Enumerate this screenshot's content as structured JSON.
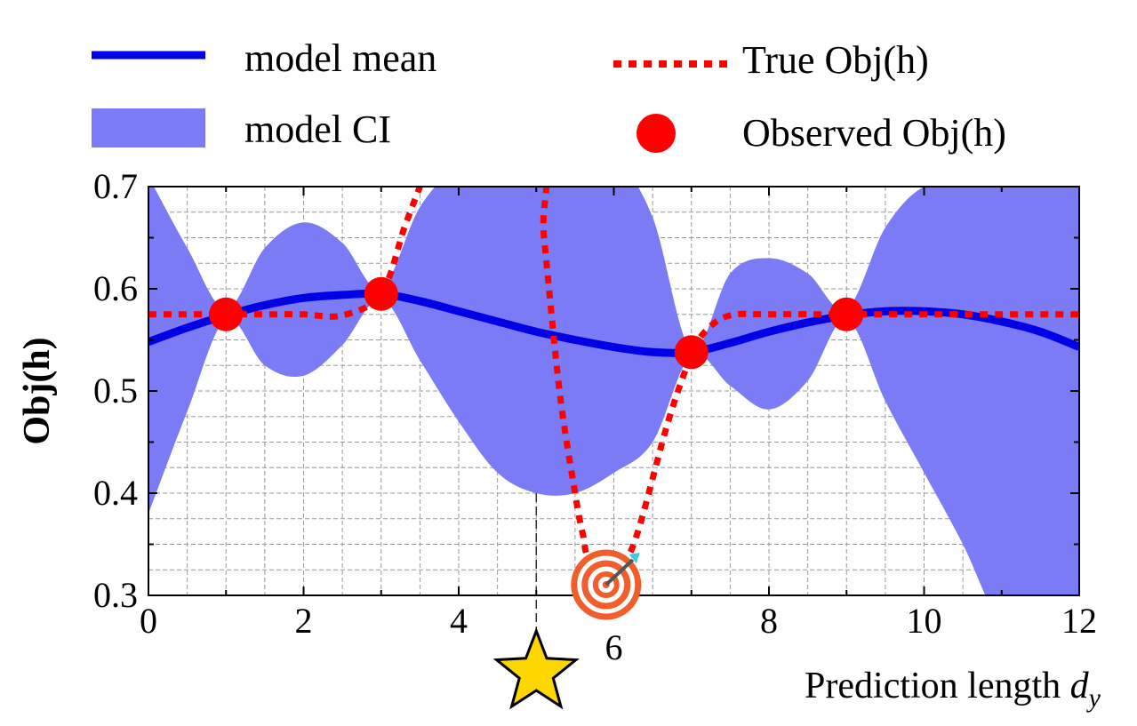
{
  "chart_data": {
    "type": "line",
    "legend_position": "top",
    "grid": true,
    "xlabel_text": "Prediction length ",
    "xlabel_var": "d",
    "xlabel_sub": "y",
    "ylabel": "Obj(h)",
    "xlim": [
      0,
      12
    ],
    "ylim": [
      0.3,
      0.7
    ],
    "x_ticks": [
      "0",
      "2",
      "4",
      "6",
      "8",
      "10",
      "12"
    ],
    "y_ticks": [
      "0.3",
      "0.4",
      "0.5",
      "0.6",
      "0.7"
    ],
    "legend": {
      "model_mean": "model mean",
      "model_ci": "model CI",
      "true_obj": "True Obj(h)",
      "observed": "Observed Obj(h)"
    },
    "colors": {
      "mean": "#0000e6",
      "ci": "#7b7bf5",
      "true": "#ff0000",
      "observed": "#ff0000",
      "star": "#ffd700"
    },
    "icons": [
      "star-icon",
      "target-icon"
    ],
    "markers": {
      "star_x": 5.0,
      "target_x": 5.9
    },
    "series": [
      {
        "name": "model mean",
        "x": [
          0,
          0.5,
          1,
          1.5,
          2,
          2.5,
          3,
          3.5,
          4,
          4.5,
          5,
          5.5,
          6,
          6.5,
          7,
          7.5,
          8,
          8.5,
          9,
          9.5,
          10,
          10.5,
          11,
          11.5,
          12
        ],
        "y": [
          0.548,
          0.562,
          0.574,
          0.584,
          0.591,
          0.594,
          0.595,
          0.588,
          0.578,
          0.568,
          0.558,
          0.55,
          0.543,
          0.538,
          0.538,
          0.547,
          0.558,
          0.567,
          0.574,
          0.578,
          0.578,
          0.575,
          0.568,
          0.558,
          0.543
        ]
      },
      {
        "name": "model CI",
        "x": [
          0,
          0.5,
          1,
          1.5,
          2,
          2.5,
          3,
          3.5,
          4,
          4.5,
          5,
          5.5,
          6,
          6.5,
          7,
          7.5,
          8,
          8.5,
          9,
          9.5,
          10,
          10.5,
          11,
          11.5,
          12
        ],
        "upper": [
          0.71,
          0.64,
          0.58,
          0.64,
          0.665,
          0.645,
          0.6,
          0.68,
          0.72,
          0.73,
          0.73,
          0.74,
          0.73,
          0.67,
          0.54,
          0.615,
          0.63,
          0.615,
          0.58,
          0.66,
          0.7,
          0.7,
          0.7,
          0.7,
          0.7
        ],
        "lower": [
          0.38,
          0.48,
          0.57,
          0.525,
          0.515,
          0.545,
          0.59,
          0.53,
          0.47,
          0.42,
          0.4,
          0.4,
          0.42,
          0.45,
          0.535,
          0.505,
          0.482,
          0.51,
          0.57,
          0.49,
          0.42,
          0.35,
          0.27,
          0.25,
          0.25
        ]
      },
      {
        "name": "True Obj(h)",
        "x": [
          0,
          1,
          1.5,
          2,
          2.5,
          3,
          3.3,
          3.5,
          3.6,
          5.0,
          5.1,
          5.3,
          5.5,
          5.6,
          5.7,
          6.1,
          6.3,
          6.7,
          7.0,
          7.2,
          7.5,
          8,
          9,
          10,
          11,
          12
        ],
        "y": [
          0.575,
          0.575,
          0.575,
          0.575,
          0.574,
          0.595,
          0.66,
          0.7,
          0.72,
          0.72,
          0.65,
          0.5,
          0.4,
          0.36,
          0.335,
          0.335,
          0.36,
          0.47,
          0.535,
          0.56,
          0.574,
          0.575,
          0.575,
          0.575,
          0.575,
          0.575
        ]
      },
      {
        "name": "Observed Obj(h)",
        "x": [
          1,
          3,
          7,
          9
        ],
        "y": [
          0.575,
          0.595,
          0.538,
          0.575
        ]
      }
    ]
  }
}
